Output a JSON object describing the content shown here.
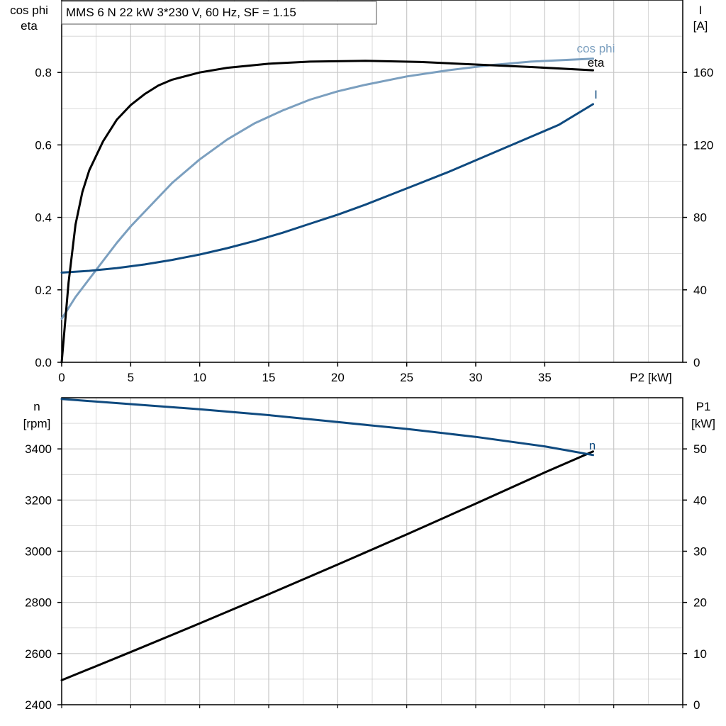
{
  "title": "MMS 6 N   22 kW   3*230 V, 60 Hz, SF = 1.15",
  "colors": {
    "eta": "#000000",
    "cosphi": "#7b9fbf",
    "current": "#0f4a7f",
    "speed": "#0f4a7f",
    "p1": "#000000",
    "grid": "#c8c8c8"
  },
  "chart_data": [
    {
      "type": "line",
      "xlabel": "P2 [kW]",
      "ylabel_left_line1": "cos phi",
      "ylabel_left_line2": "eta",
      "ylabel_right_line1": "I",
      "ylabel_right_line2": "[A]",
      "xlim": [
        0,
        45
      ],
      "ylim_left": [
        0,
        1.0
      ],
      "ylim_right": [
        0,
        200
      ],
      "x_ticks": [
        "0",
        "5",
        "10",
        "15",
        "20",
        "25",
        "30",
        "35"
      ],
      "y_left_ticks": [
        "0.0",
        "0.2",
        "0.4",
        "0.6",
        "0.8"
      ],
      "y_right_ticks": [
        "0",
        "40",
        "80",
        "120",
        "160"
      ],
      "grid": true,
      "series": [
        {
          "name": "eta",
          "axis": "left",
          "x": [
            0,
            0.5,
            1,
            1.5,
            2,
            3,
            4,
            5,
            6,
            7,
            8,
            10,
            12,
            15,
            18,
            22,
            26,
            30,
            34,
            38.5
          ],
          "y": [
            0,
            0.22,
            0.38,
            0.47,
            0.53,
            0.61,
            0.67,
            0.71,
            0.74,
            0.764,
            0.78,
            0.8,
            0.813,
            0.824,
            0.83,
            0.832,
            0.829,
            0.822,
            0.815,
            0.806
          ]
        },
        {
          "name": "cos phi",
          "axis": "left",
          "x": [
            0,
            1,
            2,
            3,
            4,
            5,
            6,
            8,
            10,
            12,
            14,
            16,
            18,
            20,
            22,
            25,
            28,
            31,
            34,
            38.5
          ],
          "y": [
            0.12,
            0.18,
            0.23,
            0.28,
            0.33,
            0.375,
            0.415,
            0.495,
            0.56,
            0.615,
            0.66,
            0.695,
            0.725,
            0.748,
            0.766,
            0.789,
            0.806,
            0.82,
            0.83,
            0.838
          ]
        },
        {
          "name": "I",
          "axis": "right",
          "x": [
            0,
            2,
            4,
            6,
            8,
            10,
            12,
            14,
            16,
            18,
            20,
            22,
            24,
            26,
            28,
            30,
            32,
            34,
            36,
            38.5
          ],
          "y": [
            49.5,
            50.5,
            52,
            54,
            56.5,
            59.5,
            63,
            67,
            71.5,
            76.5,
            81.5,
            87,
            93,
            99,
            105,
            111.5,
            118,
            124.5,
            131,
            142.5
          ]
        }
      ]
    },
    {
      "type": "line",
      "ylabel_left_line1": "n",
      "ylabel_left_line2": "[rpm]",
      "ylabel_right_line1": "P1",
      "ylabel_right_line2": "[kW]",
      "xlim": [
        0,
        45
      ],
      "ylim_left": [
        2400,
        3600
      ],
      "ylim_right": [
        0,
        60
      ],
      "y_left_ticks": [
        "2400",
        "2600",
        "2800",
        "3000",
        "3200",
        "3400"
      ],
      "y_right_ticks": [
        "0",
        "10",
        "20",
        "30",
        "40",
        "50"
      ],
      "grid": true,
      "series": [
        {
          "name": "n",
          "axis": "left",
          "x": [
            0,
            5,
            10,
            15,
            20,
            25,
            30,
            35,
            38.5
          ],
          "y": [
            3595,
            3575,
            3555,
            3532,
            3505,
            3478,
            3447,
            3410,
            3376
          ]
        },
        {
          "name": "P1",
          "axis": "right",
          "x": [
            0,
            5,
            10,
            15,
            20,
            25,
            30,
            35,
            38.5
          ],
          "y": [
            4.8,
            10.3,
            15.9,
            21.6,
            27.4,
            33.3,
            39.3,
            45.4,
            49.5
          ]
        }
      ]
    }
  ]
}
